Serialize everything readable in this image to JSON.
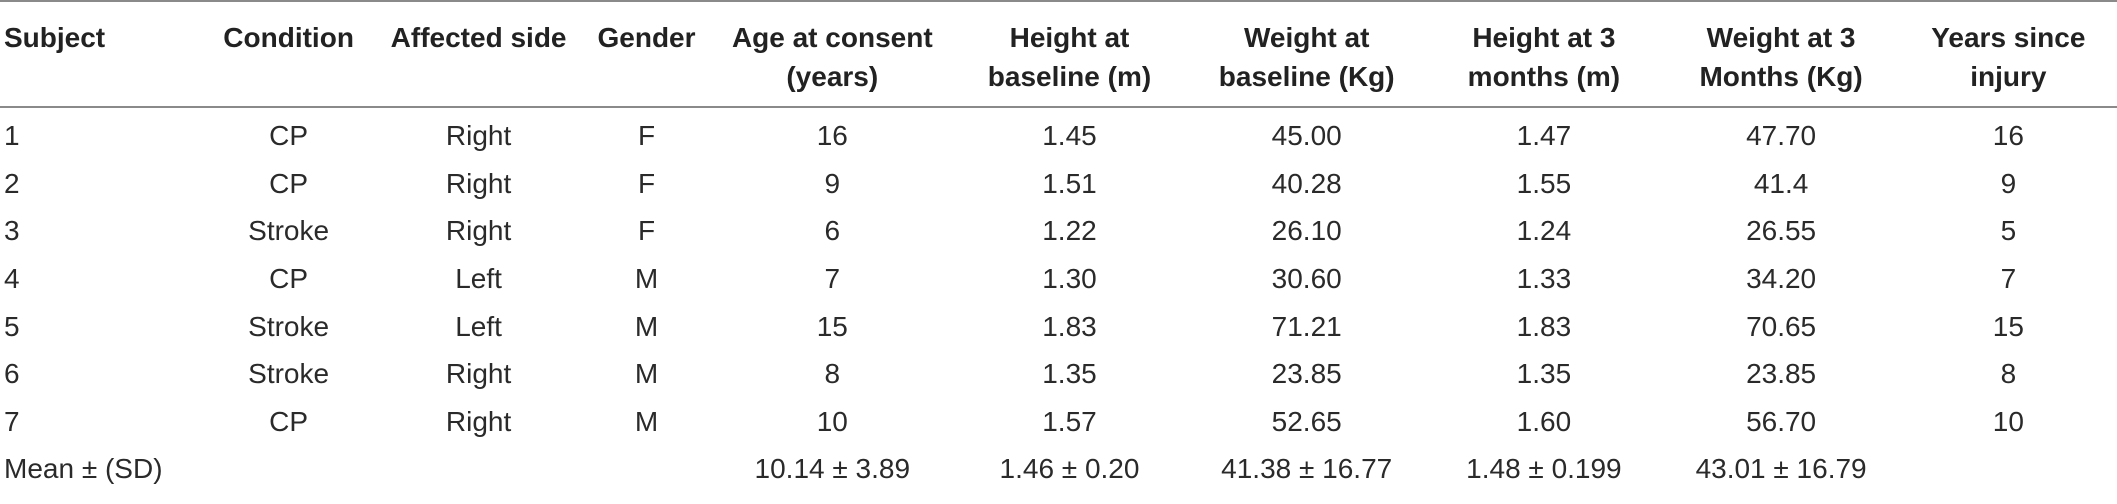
{
  "columns": [
    {
      "line1": "Subject",
      "line2": ""
    },
    {
      "line1": "Condition",
      "line2": ""
    },
    {
      "line1": "Affected side",
      "line2": ""
    },
    {
      "line1": "Gender",
      "line2": ""
    },
    {
      "line1": "Age at consent",
      "line2": "(years)"
    },
    {
      "line1": "Height at",
      "line2": "baseline (m)"
    },
    {
      "line1": "Weight at",
      "line2": "baseline (Kg)"
    },
    {
      "line1": "Height at 3",
      "line2": "months (m)"
    },
    {
      "line1": "Weight at 3",
      "line2": "Months (Kg)"
    },
    {
      "line1": "Years since",
      "line2": "injury"
    }
  ],
  "rows": [
    [
      "1",
      "CP",
      "Right",
      "F",
      "16",
      "1.45",
      "45.00",
      "1.47",
      "47.70",
      "16"
    ],
    [
      "2",
      "CP",
      "Right",
      "F",
      "9",
      "1.51",
      "40.28",
      "1.55",
      "41.4",
      "9"
    ],
    [
      "3",
      "Stroke",
      "Right",
      "F",
      "6",
      "1.22",
      "26.10",
      "1.24",
      "26.55",
      "5"
    ],
    [
      "4",
      "CP",
      "Left",
      "M",
      "7",
      "1.30",
      "30.60",
      "1.33",
      "34.20",
      "7"
    ],
    [
      "5",
      "Stroke",
      "Left",
      "M",
      "15",
      "1.83",
      "71.21",
      "1.83",
      "70.65",
      "15"
    ],
    [
      "6",
      "Stroke",
      "Right",
      "M",
      "8",
      "1.35",
      "23.85",
      "1.35",
      "23.85",
      "8"
    ],
    [
      "7",
      "CP",
      "Right",
      "M",
      "10",
      "1.57",
      "52.65",
      "1.60",
      "56.70",
      "10"
    ]
  ],
  "summary": [
    "Mean ± (SD)",
    "",
    "",
    "",
    "10.14 ± 3.89",
    "1.46 ± 0.20",
    "41.38 ± 16.77",
    "1.48 ± 0.199",
    "43.01 ± 16.79",
    ""
  ],
  "colors": {
    "rule": "#8a8a8a",
    "text": "#222222"
  }
}
